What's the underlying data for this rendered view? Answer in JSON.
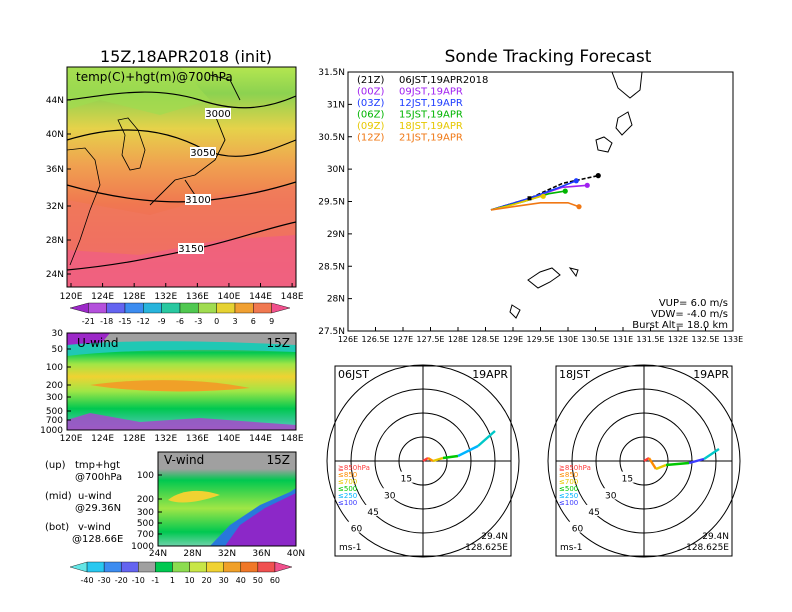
{
  "left_title": "15Z,18APR2018 (init)",
  "right_title": "Sonde Tracking Forecast",
  "map": {
    "label": "temp(C)+hgt(m)@700hPa",
    "contours": [
      "3000",
      "3050",
      "3100",
      "3150"
    ],
    "lat_ticks": [
      "44N",
      "40N",
      "36N",
      "32N",
      "28N",
      "24N"
    ],
    "lon_ticks": [
      "120E",
      "124E",
      "128E",
      "132E",
      "136E",
      "140E",
      "144E",
      "148E"
    ]
  },
  "temp_colorbar": [
    "-21",
    "-18",
    "-15",
    "-12",
    "-9",
    "-6",
    "-3",
    "0",
    "3",
    "6",
    "9"
  ],
  "uwind": {
    "title": "U-wind",
    "time": "15Z",
    "p_ticks": [
      "30",
      "50",
      "100",
      "200",
      "300",
      "500",
      "700",
      "1000"
    ],
    "lon_ticks": [
      "120E",
      "124E",
      "128E",
      "132E",
      "136E",
      "140E",
      "144E",
      "148E"
    ]
  },
  "vwind": {
    "title": "V-wind",
    "time": "15Z",
    "p_ticks": [
      "100",
      "200",
      "300",
      "500",
      "700",
      "1000"
    ],
    "lat_ticks": [
      "24N",
      "28N",
      "32N",
      "36N",
      "40N"
    ]
  },
  "wind_colorbar": [
    "-40",
    "-30",
    "-20",
    "-10",
    "-1",
    "1",
    "10",
    "20",
    "30",
    "40",
    "50",
    "60"
  ],
  "notes": [
    {
      "a": "(up)",
      "b": "tmp+hgt",
      "c": "@700hPa"
    },
    {
      "a": "(mid)",
      "b": "u-wind",
      "c": "@29.36N"
    },
    {
      "a": "(bot)",
      "b": "v-wind",
      "c": "@128.66E"
    }
  ],
  "track": {
    "lat_ticks": [
      "31.5N",
      "31N",
      "30.5N",
      "30N",
      "29.5N",
      "29N",
      "28.5N",
      "28N",
      "27.5N"
    ],
    "lon_ticks": [
      "126E",
      "126.5E",
      "127E",
      "127.5E",
      "128E",
      "128.5E",
      "129E",
      "129.5E",
      "130E",
      "130.5E",
      "131E",
      "131.5E",
      "132E",
      "132.5E",
      "133E"
    ],
    "legend": [
      {
        "utc": "(21Z)",
        "jst": "06JST,19APR2018",
        "color": "#000000"
      },
      {
        "utc": "(00Z)",
        "jst": "09JST,19APR",
        "color": "#a020f0"
      },
      {
        "utc": "(03Z)",
        "jst": "12JST,19APR",
        "color": "#1e3cff"
      },
      {
        "utc": "(06Z)",
        "jst": "15JST,19APR",
        "color": "#00b400"
      },
      {
        "utc": "(09Z)",
        "jst": "18JST,19APR",
        "color": "#e6c800"
      },
      {
        "utc": "(12Z)",
        "jst": "21JST,19APR",
        "color": "#f07814"
      }
    ],
    "params": [
      "VUP= 6.0 m/s",
      "VDW= -4.0 m/s",
      "Burst Alt= 18.0 km"
    ]
  },
  "polar": [
    {
      "time": "06JST",
      "date": "19APR",
      "lat": "29.4N",
      "lon": "128.625E",
      "unit": "ms-1"
    },
    {
      "time": "18JST",
      "date": "19APR",
      "lat": "29.4N",
      "lon": "128.625E",
      "unit": "ms-1"
    }
  ],
  "polar_rings": [
    "15",
    "30",
    "45",
    "60"
  ],
  "polar_levels": [
    {
      "label": "≧850hPa",
      "color": "#ff3c3c"
    },
    {
      "label": "≤850",
      "color": "#ff8c00"
    },
    {
      "label": "≤700",
      "color": "#e6c800"
    },
    {
      "label": "≤500",
      "color": "#00c800"
    },
    {
      "label": "≤250",
      "color": "#00b4ff"
    },
    {
      "label": "≤100",
      "color": "#3c3cff"
    }
  ],
  "chart_data": {
    "type": "line",
    "title": "Sonde Tracking Forecast",
    "xlim": [
      126,
      133
    ],
    "ylim": [
      27.5,
      31.5
    ],
    "series": [
      {
        "name": "(21Z) 06JST,19APR2018",
        "color": "#000000",
        "points": [
          [
            128.6,
            29.37
          ],
          [
            129.3,
            29.55
          ],
          [
            129.9,
            29.78
          ],
          [
            130.55,
            29.9
          ]
        ]
      },
      {
        "name": "(00Z) 09JST,19APR",
        "color": "#a020f0",
        "points": [
          [
            128.6,
            29.37
          ],
          [
            129.3,
            29.55
          ],
          [
            129.9,
            29.72
          ],
          [
            130.35,
            29.75
          ]
        ]
      },
      {
        "name": "(03Z) 12JST,19APR",
        "color": "#1e3cff",
        "points": [
          [
            128.6,
            29.37
          ],
          [
            129.3,
            29.55
          ],
          [
            129.85,
            29.72
          ],
          [
            130.15,
            29.82
          ]
        ]
      },
      {
        "name": "(06Z) 15JST,19APR",
        "color": "#00b400",
        "points": [
          [
            128.6,
            29.37
          ],
          [
            129.2,
            29.5
          ],
          [
            129.65,
            29.62
          ],
          [
            129.95,
            29.66
          ]
        ]
      },
      {
        "name": "(09Z) 18JST,19APR",
        "color": "#e6c800",
        "points": [
          [
            128.6,
            29.37
          ],
          [
            129.0,
            29.45
          ],
          [
            129.5,
            29.58
          ],
          [
            129.55,
            29.58
          ]
        ]
      },
      {
        "name": "(12Z) 21JST,19APR",
        "color": "#f07814",
        "points": [
          [
            128.6,
            29.37
          ],
          [
            129.0,
            29.42
          ],
          [
            129.5,
            29.48
          ],
          [
            130.0,
            29.48
          ],
          [
            130.2,
            29.42
          ]
        ]
      }
    ]
  }
}
